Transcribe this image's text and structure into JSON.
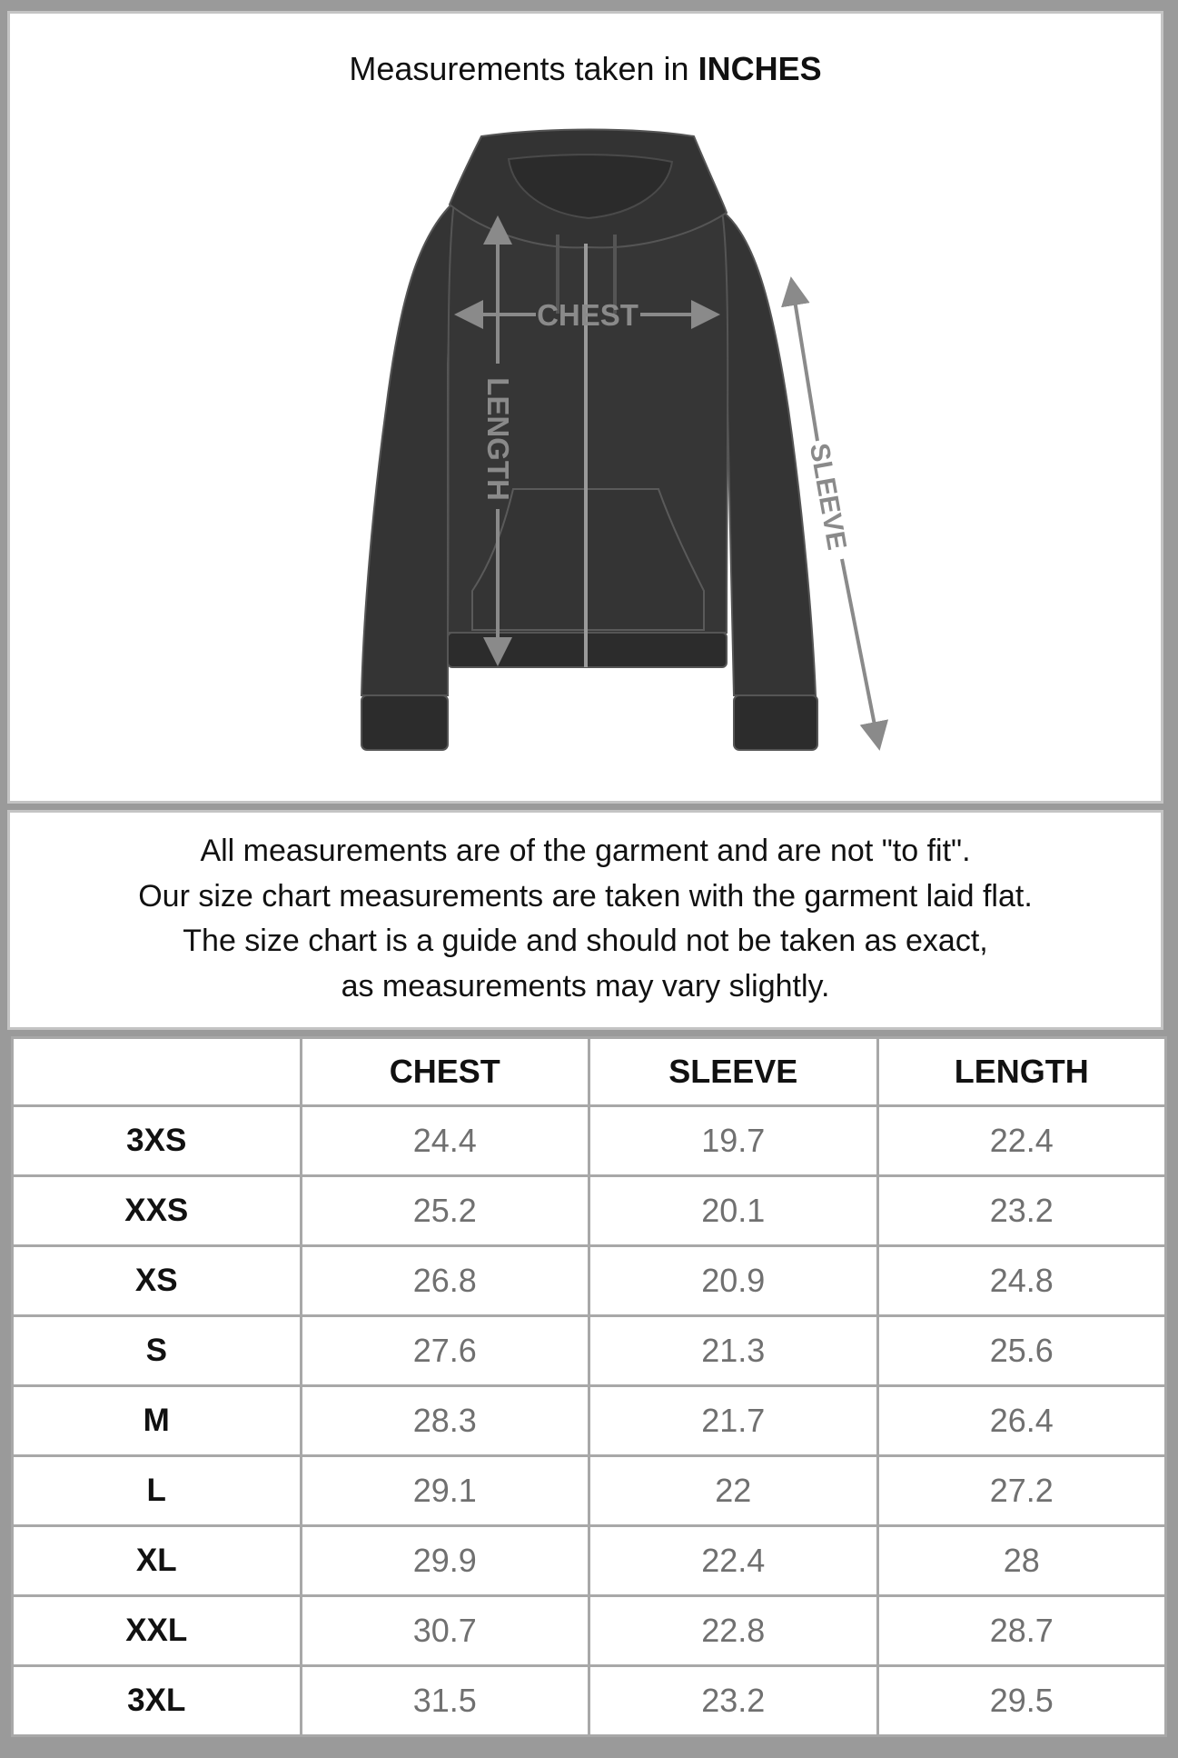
{
  "header": {
    "title_prefix": "Measurements taken in",
    "title_unit": "INCHES"
  },
  "diagram": {
    "garment": "zip-up hoodie",
    "labels": {
      "chest": "CHEST",
      "length": "LENGTH",
      "sleeve": "SLEEVE"
    },
    "colors": {
      "garment": "#343434",
      "arrows": "#8a8a8a"
    }
  },
  "notes": [
    "All measurements are of the garment and are not \"to fit\".",
    "Our size chart measurements are taken with the garment laid flat.",
    "The size chart is a guide and should not be taken as exact,",
    "as measurements may vary slightly."
  ],
  "table": {
    "columns": [
      "",
      "CHEST",
      "SLEEVE",
      "LENGTH"
    ],
    "rows": [
      {
        "size": "3XS",
        "chest": "24.4",
        "sleeve": "19.7",
        "length": "22.4"
      },
      {
        "size": "XXS",
        "chest": "25.2",
        "sleeve": "20.1",
        "length": "23.2"
      },
      {
        "size": "XS",
        "chest": "26.8",
        "sleeve": "20.9",
        "length": "24.8"
      },
      {
        "size": "S",
        "chest": "27.6",
        "sleeve": "21.3",
        "length": "25.6"
      },
      {
        "size": "M",
        "chest": "28.3",
        "sleeve": "21.7",
        "length": "26.4"
      },
      {
        "size": "L",
        "chest": "29.1",
        "sleeve": "22",
        "length": "27.2"
      },
      {
        "size": "XL",
        "chest": "29.9",
        "sleeve": "22.4",
        "length": "28"
      },
      {
        "size": "XXL",
        "chest": "30.7",
        "sleeve": "22.8",
        "length": "28.7"
      },
      {
        "size": "3XL",
        "chest": "31.5",
        "sleeve": "23.2",
        "length": "29.5"
      }
    ]
  }
}
